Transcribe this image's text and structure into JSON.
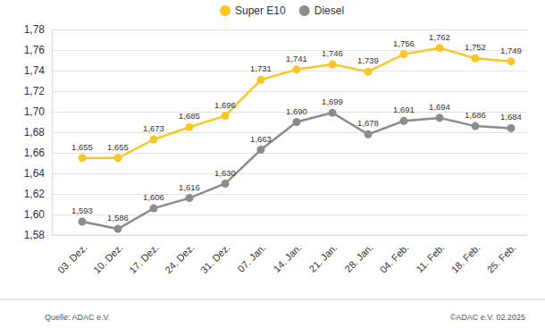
{
  "chart_data": {
    "type": "line",
    "categories": [
      "03. Dez.",
      "10. Dez.",
      "17. Dez.",
      "24. Dez.",
      "31. Dez.",
      "07. Jan.",
      "14. Jan.",
      "21. Jan.",
      "28. Jan.",
      "04. Feb.",
      "11. Feb.",
      "18. Feb.",
      "25. Feb."
    ],
    "series": [
      {
        "name": "Super E10",
        "color": "#f9c623",
        "values": [
          1.655,
          1.655,
          1.673,
          1.685,
          1.696,
          1.731,
          1.741,
          1.746,
          1.739,
          1.756,
          1.762,
          1.752,
          1.749
        ],
        "value_labels": [
          "1,655",
          "1,655",
          "1,673",
          "1,685",
          "1,696",
          "1,731",
          "1,741",
          "1,746",
          "1,739",
          "1,756",
          "1,762",
          "1,752",
          "1,749"
        ]
      },
      {
        "name": "Diesel",
        "color": "#8c8c8c",
        "values": [
          1.593,
          1.586,
          1.606,
          1.616,
          1.63,
          1.663,
          1.69,
          1.699,
          1.678,
          1.691,
          1.694,
          1.686,
          1.684
        ],
        "value_labels": [
          "1,593",
          "1,586",
          "1,606",
          "1,616",
          "1,630",
          "1,663",
          "1,690",
          "1,699",
          "1,678",
          "1,691",
          "1,694",
          "1,686",
          "1,684"
        ]
      }
    ],
    "ylim": [
      1.58,
      1.78
    ],
    "yticks": [
      {
        "value": 1.58,
        "label": "1,58"
      },
      {
        "value": 1.6,
        "label": "1,60"
      },
      {
        "value": 1.62,
        "label": "1,62"
      },
      {
        "value": 1.64,
        "label": "1,64"
      },
      {
        "value": 1.66,
        "label": "1,66"
      },
      {
        "value": 1.68,
        "label": "1,68"
      },
      {
        "value": 1.7,
        "label": "1,70"
      },
      {
        "value": 1.72,
        "label": "1,72"
      },
      {
        "value": 1.74,
        "label": "1,74"
      },
      {
        "value": 1.76,
        "label": "1,76"
      },
      {
        "value": 1.78,
        "label": "1,78"
      }
    ],
    "grid": true,
    "legend": "top",
    "marker": "circle",
    "line_style": "solid",
    "data_labels": true,
    "annotations": [
      "Quelle: ADAC e.V.",
      "©ADAC e.V. 02.2025"
    ]
  }
}
